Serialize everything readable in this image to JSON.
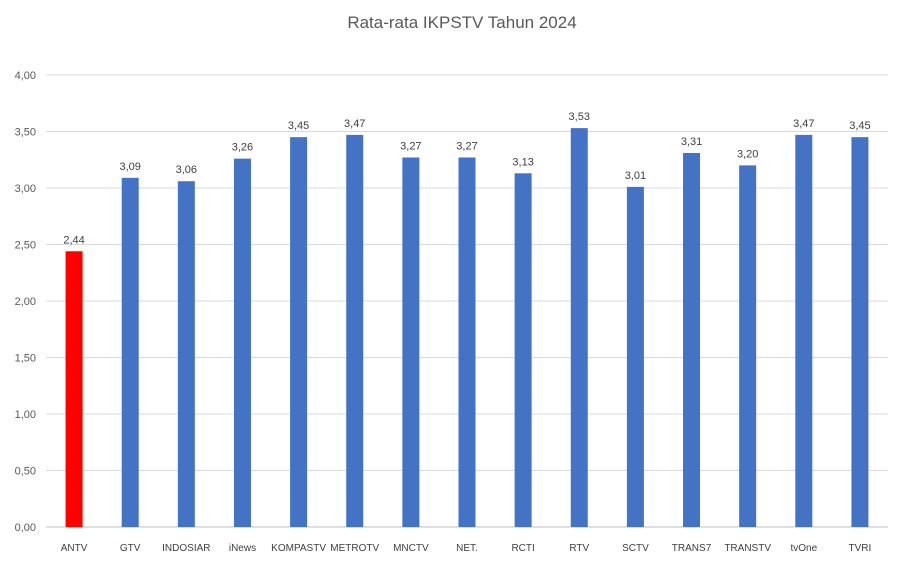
{
  "chart_data": {
    "type": "bar",
    "title": "Rata-rata IKPSTV Tahun  2024",
    "xlabel": "",
    "ylabel": "",
    "ylim": [
      0,
      4
    ],
    "grid": true,
    "legend": "none",
    "y_ticks": [
      "0,00",
      "0,50",
      "1,00",
      "1,50",
      "2,00",
      "2,50",
      "3,00",
      "3,50",
      "4,00"
    ],
    "y_tick_values": [
      0,
      0.5,
      1,
      1.5,
      2,
      2.5,
      3,
      3.5,
      4
    ],
    "categories": [
      "ANTV",
      "GTV",
      "INDOSIAR",
      "iNews",
      "KOMPASTV",
      "METROTV",
      "MNCTV",
      "NET.",
      "RCTI",
      "RTV",
      "SCTV",
      "TRANS7",
      "TRANSTV",
      "tvOne",
      "TVRI"
    ],
    "values": [
      2.44,
      3.09,
      3.06,
      3.26,
      3.45,
      3.47,
      3.27,
      3.27,
      3.13,
      3.53,
      3.01,
      3.31,
      3.2,
      3.47,
      3.45
    ],
    "value_labels": [
      "2,44",
      "3,09",
      "3,06",
      "3,26",
      "3,45",
      "3,47",
      "3,27",
      "3,27",
      "3,13",
      "3,53",
      "3,01",
      "3,31",
      "3,20",
      "3,47",
      "3,45"
    ],
    "colors": {
      "default_bar": "#4472c4",
      "highlight_bar": "#ff0000"
    },
    "highlight_categories": [
      "ANTV"
    ]
  }
}
